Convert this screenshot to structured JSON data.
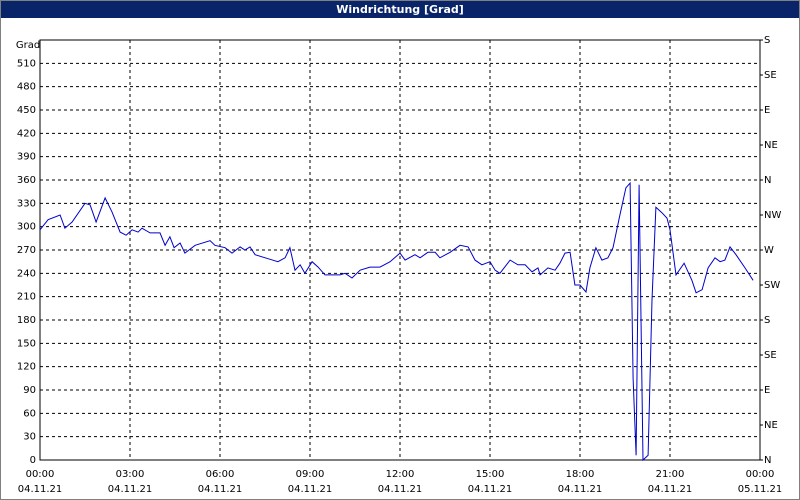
{
  "chart_data": {
    "type": "line",
    "title": "Windrichtung [Grad]",
    "y_label": "Grad",
    "xlim": [
      0,
      24
    ],
    "xticks": [
      {
        "value": 0,
        "label": "00:00"
      },
      {
        "value": 3,
        "label": "03:00"
      },
      {
        "value": 6,
        "label": "06:00"
      },
      {
        "value": 9,
        "label": "09:00"
      },
      {
        "value": 12,
        "label": "12:00"
      },
      {
        "value": 15,
        "label": "15:00"
      },
      {
        "value": 18,
        "label": "18:00"
      },
      {
        "value": 21,
        "label": "21:00"
      },
      {
        "value": 24,
        "label": "00:00"
      }
    ],
    "xtick_dates": [
      "04.11.21",
      "04.11.21",
      "04.11.21",
      "04.11.21",
      "04.11.21",
      "04.11.21",
      "04.11.21",
      "04.11.21",
      "05.11.21"
    ],
    "ylim": [
      0,
      540
    ],
    "yticks": [
      0,
      30,
      60,
      90,
      120,
      150,
      180,
      210,
      240,
      270,
      300,
      330,
      360,
      390,
      420,
      450,
      480,
      510
    ],
    "y2lim": [
      0,
      540
    ],
    "y2ticks": [
      {
        "value": 0,
        "label": "N"
      },
      {
        "value": 45,
        "label": "NE"
      },
      {
        "value": 90,
        "label": "E"
      },
      {
        "value": 135,
        "label": "SE"
      },
      {
        "value": 180,
        "label": "S"
      },
      {
        "value": 225,
        "label": "SW"
      },
      {
        "value": 270,
        "label": "W"
      },
      {
        "value": 315,
        "label": "NW"
      },
      {
        "value": 360,
        "label": "N"
      },
      {
        "value": 405,
        "label": "NE"
      },
      {
        "value": 450,
        "label": "E"
      },
      {
        "value": 495,
        "label": "SE"
      },
      {
        "value": 540,
        "label": "S"
      }
    ],
    "grid": true,
    "series": [
      {
        "color": "#0000cc",
        "x": [
          0,
          0.27,
          0.67,
          0.83,
          1.07,
          1.5,
          1.67,
          1.87,
          2.17,
          2.4,
          2.67,
          2.87,
          3.07,
          3.27,
          3.4,
          3.67,
          4.0,
          4.17,
          4.33,
          4.47,
          4.67,
          4.83,
          5.17,
          5.67,
          5.83,
          6.17,
          6.4,
          6.67,
          6.83,
          7.0,
          7.17,
          7.67,
          7.93,
          8.17,
          8.33,
          8.5,
          8.67,
          8.83,
          9.07,
          9.27,
          9.5,
          10,
          10.17,
          10.4,
          10.67,
          11,
          11.33,
          11.67,
          12,
          12.17,
          12.5,
          12.67,
          12.93,
          13.17,
          13.33,
          13.67,
          14,
          14.27,
          14.5,
          14.73,
          15,
          15.17,
          15.33,
          15.67,
          15.93,
          16.17,
          16.4,
          16.6,
          16.67,
          16.93,
          17.17,
          17.33,
          17.5,
          17.67,
          17.83,
          18,
          18.2,
          18.33,
          18.53,
          18.73,
          18.93,
          19.1,
          19.33,
          19.53,
          19.67,
          19.77,
          19.87,
          19.97,
          20.1,
          20.27,
          20.4,
          20.53,
          20.73,
          20.9,
          21,
          21.2,
          21.47,
          21.73,
          21.87,
          22.07,
          22.27,
          22.5,
          22.67,
          22.83,
          23,
          23.2,
          23.5,
          23.77
        ],
        "values": [
          296,
          309,
          315,
          298,
          306,
          330,
          328,
          306,
          337,
          319,
          293,
          289,
          296,
          293,
          298,
          292,
          292,
          276,
          287,
          273,
          279,
          266,
          276,
          282,
          276,
          273,
          266,
          274,
          270,
          274,
          264,
          258,
          255,
          260,
          273,
          244,
          251,
          240,
          255,
          248,
          238,
          238,
          240,
          234,
          244,
          248,
          248,
          255,
          266,
          257,
          264,
          260,
          267,
          267,
          260,
          267,
          276,
          274,
          257,
          251,
          255,
          244,
          240,
          257,
          251,
          251,
          242,
          247,
          238,
          247,
          244,
          253,
          266,
          267,
          225,
          225,
          216,
          247,
          273,
          257,
          260,
          273,
          315,
          350,
          356,
          105,
          6,
          354,
          0,
          6,
          206,
          325,
          318,
          311,
          296,
          238,
          253,
          231,
          215,
          219,
          247,
          260,
          255,
          257,
          274,
          264,
          247,
          231
        ]
      }
    ]
  }
}
